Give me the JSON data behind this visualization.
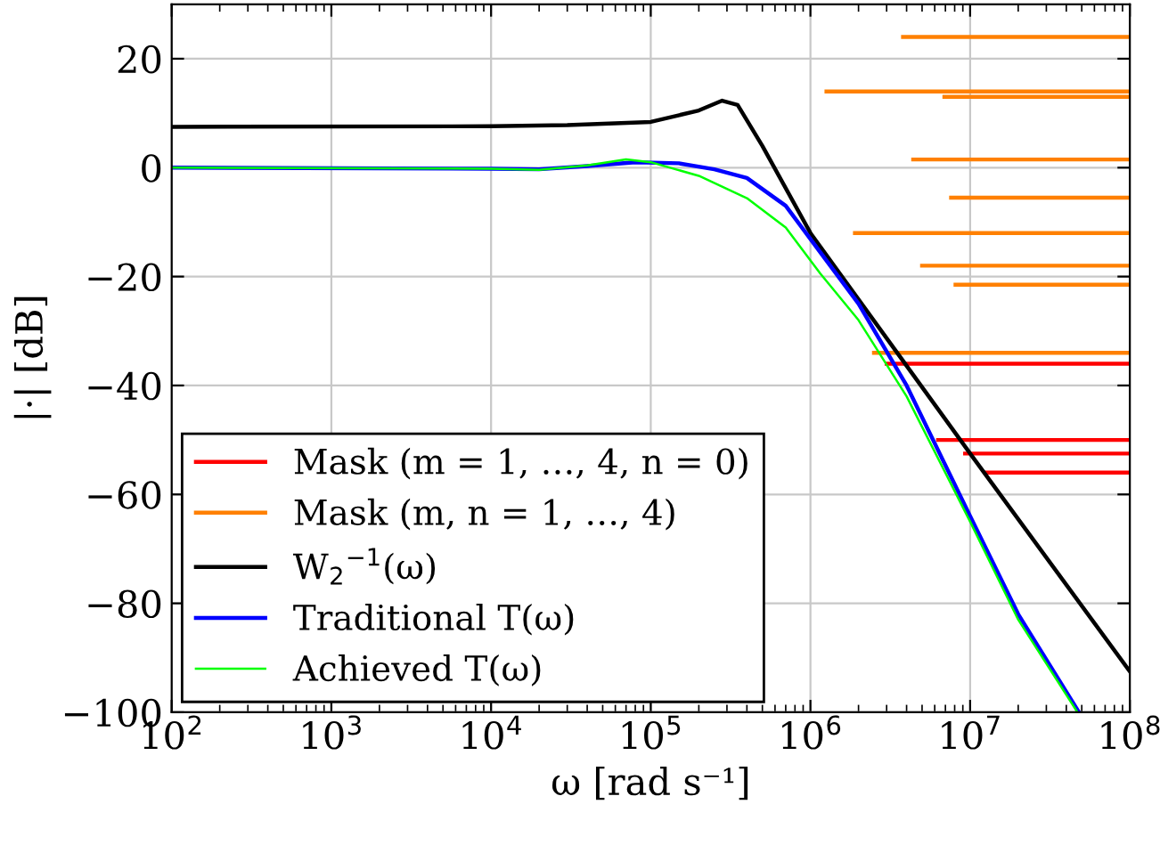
{
  "chart_data": {
    "type": "line",
    "xlabel": "ω [rad s⁻¹]",
    "ylabel": "|·| [dB]",
    "log": "x",
    "xlim": [
      100,
      100000000
    ],
    "ylim": [
      -100,
      30
    ],
    "xticks": [
      {
        "value": 100,
        "label": "10$^{2}$"
      },
      {
        "value": 1000,
        "label": "10$^{3}$"
      },
      {
        "value": 10000,
        "label": "10$^{4}$"
      },
      {
        "value": 100000,
        "label": "10$^{5}$"
      },
      {
        "value": 1000000,
        "label": "10$^{6}$"
      },
      {
        "value": 10000000,
        "label": "10$^{7}$"
      },
      {
        "value": 100000000,
        "label": "10$^{8}$"
      }
    ],
    "yticks": [
      -100,
      -80,
      -60,
      -40,
      -20,
      0,
      20
    ],
    "grid": true,
    "legend": "bottom left",
    "line_style": "solid",
    "marker": "none",
    "series": [
      {
        "name": "Mask (m = 1, …, 4, n = 0)",
        "color": "#ff0000",
        "x": [
          3000000,
          100000000
        ],
        "values": [
          -36,
          -36
        ]
      },
      {
        "color": "#ff0000",
        "x": [
          6300000,
          100000000
        ],
        "values": [
          -50,
          -50
        ]
      },
      {
        "color": "#ff0000",
        "x": [
          9300000,
          100000000
        ],
        "values": [
          -52.5,
          -52.5
        ]
      },
      {
        "color": "#ff0000",
        "x": [
          12400000,
          100000000
        ],
        "values": [
          -56,
          -56
        ]
      },
      {
        "name": "Mask (m, n = 1, …, 4)",
        "color": "#ff8000",
        "x": [
          3800000,
          100000000
        ],
        "values": [
          24,
          24
        ]
      },
      {
        "color": "#ff8000",
        "x": [
          1260000,
          100000000
        ],
        "values": [
          14,
          14
        ]
      },
      {
        "color": "#ff8000",
        "x": [
          6900000,
          100000000
        ],
        "values": [
          13,
          13
        ]
      },
      {
        "color": "#ff8000",
        "x": [
          4400000,
          100000000
        ],
        "values": [
          1.5,
          1.5
        ]
      },
      {
        "color": "#ff8000",
        "x": [
          7600000,
          100000000
        ],
        "values": [
          -5.5,
          -5.5
        ]
      },
      {
        "color": "#ff8000",
        "x": [
          1900000,
          100000000
        ],
        "values": [
          -12,
          -12
        ]
      },
      {
        "color": "#ff8000",
        "x": [
          5000000,
          100000000
        ],
        "values": [
          -18,
          -18
        ]
      },
      {
        "color": "#ff8000",
        "x": [
          8100000,
          100000000
        ],
        "values": [
          -21.5,
          -21.5
        ]
      },
      {
        "color": "#ff8000",
        "x": [
          2500000,
          100000000
        ],
        "values": [
          -34,
          -34
        ]
      },
      {
        "name": "W$_{2}$$^{−1}$(ω)",
        "color": "#000000",
        "x": [
          100,
          10000,
          30000,
          100000,
          200000,
          280000,
          350000,
          500000,
          1000000,
          10000000,
          100000000
        ],
        "values": [
          7.5,
          7.6,
          7.8,
          8.4,
          10.5,
          12.3,
          11.5,
          4,
          -12,
          -52.5,
          -92.5
        ]
      },
      {
        "name": "Traditional T(ω)",
        "color": "#0000ff",
        "x": [
          100,
          10000,
          20000,
          40000,
          80000,
          150000,
          250000,
          400000,
          700000,
          1150000,
          2000000,
          4000000,
          10000000,
          20000000,
          48000000
        ],
        "values": [
          0,
          -0.2,
          -0.3,
          0.3,
          1.0,
          0.8,
          -0.3,
          -1.9,
          -7,
          -15.5,
          -25,
          -40,
          -64,
          -82,
          -100
        ]
      },
      {
        "name": "Achieved T(ω)",
        "color": "#00ff00",
        "x": [
          100,
          10000,
          20000,
          40000,
          70000,
          100000,
          200000,
          400000,
          700000,
          1150000,
          2000000,
          4000000,
          10000000,
          20000000,
          47000000
        ],
        "values": [
          0,
          -0.2,
          -0.4,
          0.4,
          1.5,
          1.0,
          -1.5,
          -5.6,
          -11,
          -19.4,
          -28,
          -42,
          -65,
          -83,
          -100
        ]
      }
    ]
  }
}
